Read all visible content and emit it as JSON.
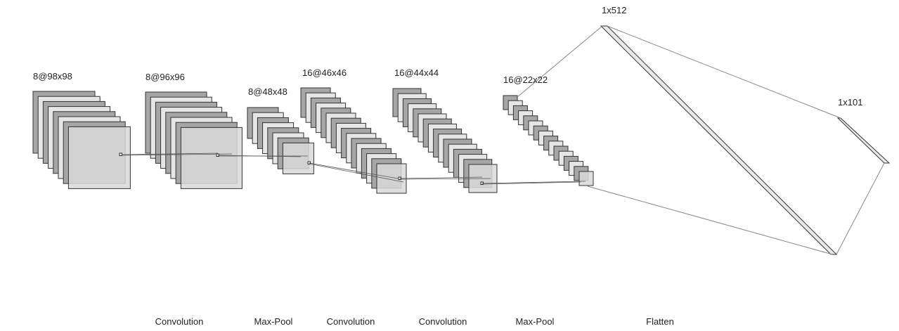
{
  "diagram": {
    "layer_labels": [
      "8@98x98",
      "8@96x96",
      "8@48x48",
      "16@46x46",
      "16@44x44",
      "16@22x22"
    ],
    "dense_labels": [
      "1x512",
      "1x101"
    ],
    "operations": [
      "Convolution",
      "Max-Pool",
      "Convolution",
      "Convolution",
      "Max-Pool",
      "Flatten"
    ],
    "colors": {
      "map_dark": "#a6a6a6",
      "map_light": "#e6e6e6",
      "map_front": "#d9d9d9",
      "stroke": "#333333",
      "connector": "#888888"
    }
  }
}
